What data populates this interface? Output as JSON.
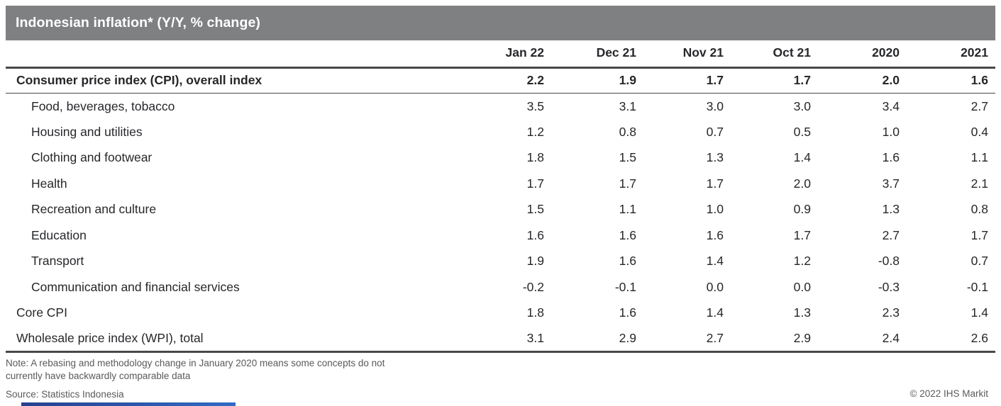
{
  "chart_data": {
    "type": "table",
    "title": "Indonesian inflation* (Y/Y, % change)",
    "columns": [
      "Jan 22",
      "Dec 21",
      "Nov 21",
      "Oct 21",
      "2020",
      "2021"
    ],
    "rows": [
      {
        "label": "Consumer price index (CPI), overall index",
        "style": "bold",
        "values": [
          "2.2",
          "1.9",
          "1.7",
          "1.7",
          "2.0",
          "1.6"
        ]
      },
      {
        "label": "Food, beverages, tobacco",
        "style": "indent",
        "values": [
          "3.5",
          "3.1",
          "3.0",
          "3.0",
          "3.4",
          "2.7"
        ]
      },
      {
        "label": "Housing and utilities",
        "style": "indent",
        "values": [
          "1.2",
          "0.8",
          "0.7",
          "0.5",
          "1.0",
          "0.4"
        ]
      },
      {
        "label": "Clothing and footwear",
        "style": "indent",
        "values": [
          "1.8",
          "1.5",
          "1.3",
          "1.4",
          "1.6",
          "1.1"
        ]
      },
      {
        "label": "Health",
        "style": "indent",
        "values": [
          "1.7",
          "1.7",
          "1.7",
          "2.0",
          "3.7",
          "2.1"
        ]
      },
      {
        "label": "Recreation and culture",
        "style": "indent",
        "values": [
          "1.5",
          "1.1",
          "1.0",
          "0.9",
          "1.3",
          "0.8"
        ]
      },
      {
        "label": "Education",
        "style": "indent",
        "values": [
          "1.6",
          "1.6",
          "1.6",
          "1.7",
          "2.7",
          "1.7"
        ]
      },
      {
        "label": "Transport",
        "style": "indent",
        "values": [
          "1.9",
          "1.6",
          "1.4",
          "1.2",
          "-0.8",
          "0.7"
        ]
      },
      {
        "label": "Communication and financial services",
        "style": "indent",
        "values": [
          "-0.2",
          "-0.1",
          "0.0",
          "0.0",
          "-0.3",
          "-0.1"
        ]
      },
      {
        "label": "Core CPI",
        "style": "plain",
        "values": [
          "1.8",
          "1.6",
          "1.4",
          "1.3",
          "2.3",
          "1.4"
        ]
      },
      {
        "label": "Wholesale price index (WPI), total",
        "style": "plain",
        "values": [
          "3.1",
          "2.9",
          "2.7",
          "2.9",
          "2.4",
          "2.6"
        ]
      }
    ]
  },
  "footer": {
    "note_lines": [
      "Note: A rebasing and methodology change in January 2020 means some concepts do not",
      "currently have backwardly comparable data"
    ],
    "source": "Source: Statistics Indonesia",
    "copyright": "© 2022 IHS Markit"
  },
  "colors": {
    "header_bar": "#7e8081",
    "text": "#26272a",
    "note_text": "#595a5c",
    "rule_dark": "#47484a",
    "accent_start": "#27418f",
    "accent_end": "#2f6bc4"
  }
}
